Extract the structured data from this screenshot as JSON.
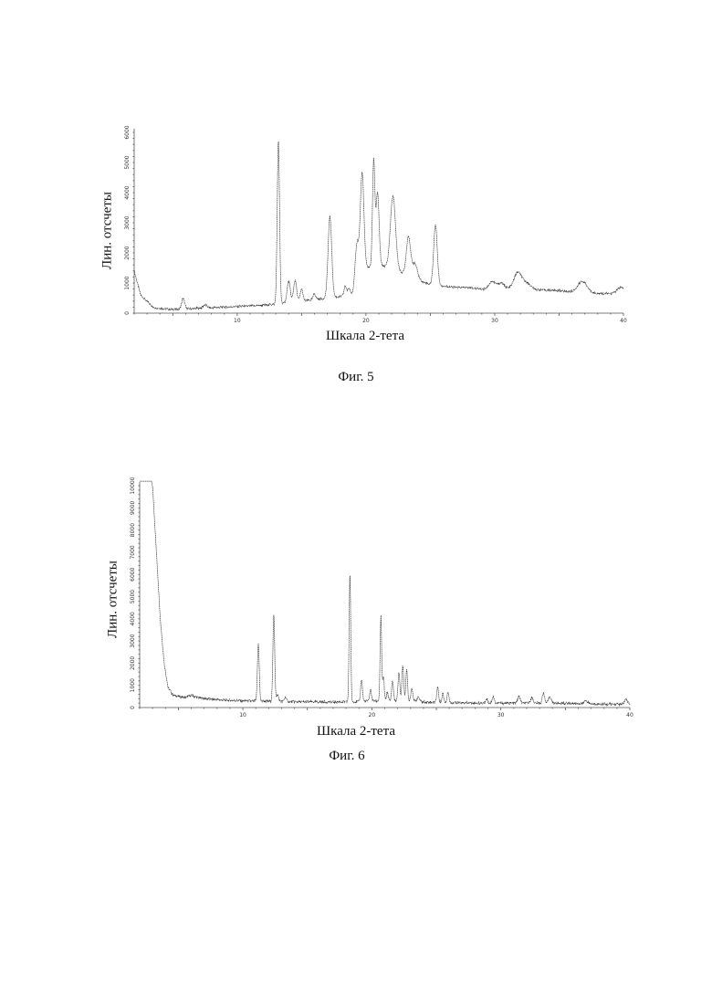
{
  "chart_data": [
    {
      "type": "line",
      "caption": "Фиг. 5",
      "xlabel": "Шкала 2-тета",
      "ylabel": "Лин. отсчеты",
      "xlim": [
        2,
        40
      ],
      "ylim": [
        0,
        6000
      ],
      "xticks": [
        10,
        20,
        30,
        40
      ],
      "yticks": [
        0,
        1000,
        2000,
        3000,
        4000,
        5000,
        6000
      ],
      "baseline": [
        [
          2,
          1400
        ],
        [
          2.5,
          600
        ],
        [
          3.5,
          180
        ],
        [
          5,
          120
        ],
        [
          8,
          180
        ],
        [
          10,
          220
        ],
        [
          12,
          260
        ],
        [
          13.5,
          320
        ],
        [
          14,
          360
        ],
        [
          15,
          400
        ],
        [
          16,
          450
        ],
        [
          17,
          500
        ],
        [
          18,
          550
        ],
        [
          19,
          650
        ],
        [
          20,
          1500
        ],
        [
          21,
          1600
        ],
        [
          22,
          1500
        ],
        [
          23,
          1300
        ],
        [
          24,
          1100
        ],
        [
          25,
          950
        ],
        [
          26,
          900
        ],
        [
          27,
          850
        ],
        [
          28,
          850
        ],
        [
          29,
          800
        ],
        [
          30,
          800
        ],
        [
          31,
          800
        ],
        [
          32,
          800
        ],
        [
          33,
          780
        ],
        [
          34,
          760
        ],
        [
          35,
          750
        ],
        [
          36,
          700
        ],
        [
          37,
          700
        ],
        [
          38,
          650
        ],
        [
          39,
          650
        ],
        [
          40,
          650
        ]
      ],
      "peaks": [
        {
          "x": 5.8,
          "y": 350,
          "w": 0.12
        },
        {
          "x": 7.5,
          "y": 100,
          "w": 0.15
        },
        {
          "x": 13.2,
          "y": 5400,
          "w": 0.09
        },
        {
          "x": 14.0,
          "y": 700,
          "w": 0.12
        },
        {
          "x": 14.5,
          "y": 700,
          "w": 0.12
        },
        {
          "x": 15.0,
          "y": 400,
          "w": 0.1
        },
        {
          "x": 16.0,
          "y": 200,
          "w": 0.1
        },
        {
          "x": 17.2,
          "y": 2700,
          "w": 0.14
        },
        {
          "x": 18.4,
          "y": 300,
          "w": 0.1
        },
        {
          "x": 18.7,
          "y": 200,
          "w": 0.1
        },
        {
          "x": 19.3,
          "y": 1400,
          "w": 0.14
        },
        {
          "x": 19.7,
          "y": 3400,
          "w": 0.14
        },
        {
          "x": 20.6,
          "y": 3500,
          "w": 0.09
        },
        {
          "x": 20.9,
          "y": 2400,
          "w": 0.12
        },
        {
          "x": 22.1,
          "y": 2400,
          "w": 0.2
        },
        {
          "x": 23.3,
          "y": 1300,
          "w": 0.16
        },
        {
          "x": 23.8,
          "y": 500,
          "w": 0.2
        },
        {
          "x": 25.4,
          "y": 2000,
          "w": 0.14
        },
        {
          "x": 29.8,
          "y": 250,
          "w": 0.25
        },
        {
          "x": 30.5,
          "y": 200,
          "w": 0.25
        },
        {
          "x": 31.8,
          "y": 550,
          "w": 0.3
        },
        {
          "x": 32.5,
          "y": 200,
          "w": 0.3
        },
        {
          "x": 36.8,
          "y": 350,
          "w": 0.35
        },
        {
          "x": 39.8,
          "y": 200,
          "w": 0.3
        }
      ]
    },
    {
      "type": "line",
      "caption": "Фиг. 6",
      "xlabel": "Шкала 2-тета",
      "ylabel": "Лин. отсчеты",
      "xlim": [
        2,
        40
      ],
      "ylim": [
        0,
        10000
      ],
      "xticks": [
        10,
        20,
        30,
        40
      ],
      "yticks": [
        0,
        1000,
        2000,
        3000,
        4000,
        5000,
        6000,
        7000,
        8000,
        9000,
        10000
      ],
      "baseline": [
        [
          2,
          12000
        ],
        [
          3.0,
          10000
        ],
        [
          3.3,
          7000
        ],
        [
          3.6,
          4000
        ],
        [
          3.9,
          2000
        ],
        [
          4.2,
          900
        ],
        [
          4.6,
          550
        ],
        [
          5.5,
          450
        ],
        [
          6.0,
          550
        ],
        [
          6.5,
          450
        ],
        [
          8,
          350
        ],
        [
          10,
          300
        ],
        [
          12,
          280
        ],
        [
          14,
          260
        ],
        [
          16,
          250
        ],
        [
          18,
          250
        ],
        [
          20,
          300
        ],
        [
          22,
          300
        ],
        [
          24,
          250
        ],
        [
          26,
          220
        ],
        [
          28,
          200
        ],
        [
          30,
          200
        ],
        [
          32,
          200
        ],
        [
          34,
          200
        ],
        [
          36,
          180
        ],
        [
          38,
          150
        ],
        [
          40,
          150
        ]
      ],
      "peaks": [
        {
          "x": 11.2,
          "y": 2600,
          "w": 0.07
        },
        {
          "x": 12.4,
          "y": 3900,
          "w": 0.07
        },
        {
          "x": 12.7,
          "y": 300,
          "w": 0.08
        },
        {
          "x": 13.3,
          "y": 200,
          "w": 0.08
        },
        {
          "x": 18.3,
          "y": 5800,
          "w": 0.06
        },
        {
          "x": 19.2,
          "y": 1000,
          "w": 0.07
        },
        {
          "x": 19.9,
          "y": 500,
          "w": 0.07
        },
        {
          "x": 20.7,
          "y": 3800,
          "w": 0.06
        },
        {
          "x": 20.9,
          "y": 1100,
          "w": 0.06
        },
        {
          "x": 21.2,
          "y": 400,
          "w": 0.07
        },
        {
          "x": 21.6,
          "y": 900,
          "w": 0.07
        },
        {
          "x": 22.1,
          "y": 1300,
          "w": 0.07
        },
        {
          "x": 22.4,
          "y": 1600,
          "w": 0.07
        },
        {
          "x": 22.7,
          "y": 1400,
          "w": 0.07
        },
        {
          "x": 23.1,
          "y": 600,
          "w": 0.08
        },
        {
          "x": 23.6,
          "y": 200,
          "w": 0.1
        },
        {
          "x": 25.1,
          "y": 700,
          "w": 0.07
        },
        {
          "x": 25.5,
          "y": 400,
          "w": 0.07
        },
        {
          "x": 25.9,
          "y": 500,
          "w": 0.07
        },
        {
          "x": 28.9,
          "y": 200,
          "w": 0.08
        },
        {
          "x": 29.4,
          "y": 300,
          "w": 0.08
        },
        {
          "x": 31.4,
          "y": 300,
          "w": 0.1
        },
        {
          "x": 32.4,
          "y": 250,
          "w": 0.1
        },
        {
          "x": 33.3,
          "y": 500,
          "w": 0.08
        },
        {
          "x": 33.8,
          "y": 300,
          "w": 0.1
        },
        {
          "x": 36.6,
          "y": 150,
          "w": 0.12
        },
        {
          "x": 39.7,
          "y": 200,
          "w": 0.12
        }
      ]
    }
  ]
}
